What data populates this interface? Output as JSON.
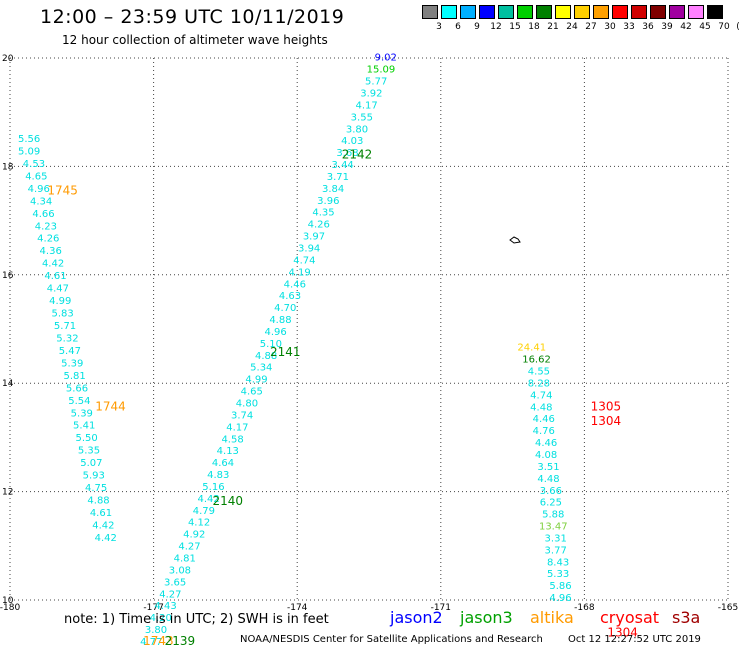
{
  "header": {
    "title": "12:00 – 23:59 UTC 10/11/2019",
    "subtitle": "12 hour collection of altimeter wave heights"
  },
  "colorbar": {
    "colors": [
      "#808080",
      "#00ffff",
      "#00b0ff",
      "#0000ff",
      "#00c0a0",
      "#00d000",
      "#008000",
      "#ffff00",
      "#ffd000",
      "#ffa000",
      "#ff0000",
      "#d00000",
      "#800000",
      "#a000a0",
      "#ff80ff",
      "#000000"
    ],
    "labels": [
      "3",
      "6",
      "9",
      "12",
      "15",
      "18",
      "21",
      "24",
      "27",
      "30",
      "33",
      "36",
      "39",
      "42",
      "45",
      "70",
      "(ft)"
    ]
  },
  "map": {
    "lon_range": [
      -180,
      -165
    ],
    "lat_range": [
      10,
      20
    ],
    "x_ticks": [
      "-180",
      "-177",
      "-174",
      "-171",
      "-168",
      "-165"
    ],
    "y_ticks": [
      "20",
      "18",
      "16",
      "14",
      "12",
      "10"
    ],
    "grid": "dotted",
    "tracks": [
      {
        "id": "track-1745-1744-1743",
        "color": "#00e0e0",
        "points": [
          {
            "lon": -179.6,
            "lat": 18.45,
            "v": "5.56"
          },
          {
            "lon": -179.6,
            "lat": 18.22,
            "v": "5.09"
          },
          {
            "lon": -179.5,
            "lat": 17.99,
            "v": "4.53"
          },
          {
            "lon": -179.45,
            "lat": 17.76,
            "v": "4.65"
          },
          {
            "lon": -179.4,
            "lat": 17.53,
            "v": "4.96"
          },
          {
            "lon": -179.35,
            "lat": 17.3,
            "v": "4.34"
          },
          {
            "lon": -179.3,
            "lat": 17.07,
            "v": "4.66"
          },
          {
            "lon": -179.25,
            "lat": 16.84,
            "v": "4.23"
          },
          {
            "lon": -179.2,
            "lat": 16.61,
            "v": "4.26"
          },
          {
            "lon": -179.15,
            "lat": 16.38,
            "v": "4.36"
          },
          {
            "lon": -179.1,
            "lat": 16.15,
            "v": "4.42"
          },
          {
            "lon": -179.05,
            "lat": 15.92,
            "v": "4.61"
          },
          {
            "lon": -179.0,
            "lat": 15.69,
            "v": "4.47"
          },
          {
            "lon": -178.95,
            "lat": 15.46,
            "v": "4.99"
          },
          {
            "lon": -178.9,
            "lat": 15.23,
            "v": "5.83"
          },
          {
            "lon": -178.85,
            "lat": 15.0,
            "v": "5.71"
          },
          {
            "lon": -178.8,
            "lat": 14.77,
            "v": "5.32"
          },
          {
            "lon": -178.75,
            "lat": 14.54,
            "v": "5.47"
          },
          {
            "lon": -178.7,
            "lat": 14.31,
            "v": "5.39"
          },
          {
            "lon": -178.65,
            "lat": 14.08,
            "v": "5.81"
          },
          {
            "lon": -178.6,
            "lat": 13.85,
            "v": "5.66"
          },
          {
            "lon": -178.55,
            "lat": 13.62,
            "v": "5.54"
          },
          {
            "lon": -178.5,
            "lat": 13.39,
            "v": "5.39"
          },
          {
            "lon": -178.45,
            "lat": 13.16,
            "v": "5.41"
          },
          {
            "lon": -178.4,
            "lat": 12.93,
            "v": "5.50"
          },
          {
            "lon": -178.35,
            "lat": 12.7,
            "v": "5.35"
          },
          {
            "lon": -178.3,
            "lat": 12.47,
            "v": "5.07"
          },
          {
            "lon": -178.25,
            "lat": 12.24,
            "v": "5.93"
          },
          {
            "lon": -178.2,
            "lat": 12.01,
            "v": "4.75"
          },
          {
            "lon": -178.15,
            "lat": 11.78,
            "v": "4.88"
          },
          {
            "lon": -178.1,
            "lat": 11.55,
            "v": "4.61"
          },
          {
            "lon": -178.05,
            "lat": 11.32,
            "v": "4.42"
          },
          {
            "lon": -178.0,
            "lat": 11.09,
            "v": "4.42"
          }
        ]
      },
      {
        "id": "track-2139-2140-2141-2142",
        "color": "#00e0e0",
        "points": [
          {
            "lon": -172.15,
            "lat": 19.95,
            "v": "9.02",
            "c": "#0000ff"
          },
          {
            "lon": -172.25,
            "lat": 19.73,
            "v": "15.09",
            "c": "#00d000"
          },
          {
            "lon": -172.35,
            "lat": 19.51,
            "v": "5.77"
          },
          {
            "lon": -172.45,
            "lat": 19.29,
            "v": "3.92"
          },
          {
            "lon": -172.55,
            "lat": 19.07,
            "v": "4.17"
          },
          {
            "lon": -172.65,
            "lat": 18.85,
            "v": "3.55"
          },
          {
            "lon": -172.75,
            "lat": 18.63,
            "v": "3.80"
          },
          {
            "lon": -172.85,
            "lat": 18.41,
            "v": "4.03"
          },
          {
            "lon": -172.95,
            "lat": 18.19,
            "v": "3.68"
          },
          {
            "lon": -173.05,
            "lat": 17.97,
            "v": "3.44"
          },
          {
            "lon": -173.15,
            "lat": 17.75,
            "v": "3.71"
          },
          {
            "lon": -173.25,
            "lat": 17.53,
            "v": "3.84"
          },
          {
            "lon": -173.35,
            "lat": 17.31,
            "v": "3.96"
          },
          {
            "lon": -173.45,
            "lat": 17.09,
            "v": "4.35"
          },
          {
            "lon": -173.55,
            "lat": 16.87,
            "v": "4.26"
          },
          {
            "lon": -173.65,
            "lat": 16.65,
            "v": "3.97"
          },
          {
            "lon": -173.75,
            "lat": 16.43,
            "v": "3.94"
          },
          {
            "lon": -173.85,
            "lat": 16.21,
            "v": "4.74"
          },
          {
            "lon": -173.95,
            "lat": 15.99,
            "v": "4.19"
          },
          {
            "lon": -174.05,
            "lat": 15.77,
            "v": "4.46"
          },
          {
            "lon": -174.15,
            "lat": 15.55,
            "v": "4.63"
          },
          {
            "lon": -174.25,
            "lat": 15.33,
            "v": "4.70"
          },
          {
            "lon": -174.35,
            "lat": 15.11,
            "v": "4.88"
          },
          {
            "lon": -174.45,
            "lat": 14.89,
            "v": "4.96"
          },
          {
            "lon": -174.55,
            "lat": 14.67,
            "v": "5.10"
          },
          {
            "lon": -174.65,
            "lat": 14.45,
            "v": "4.88"
          },
          {
            "lon": -174.75,
            "lat": 14.23,
            "v": "5.34"
          },
          {
            "lon": -174.85,
            "lat": 14.01,
            "v": "4.99"
          },
          {
            "lon": -174.95,
            "lat": 13.79,
            "v": "4.65"
          },
          {
            "lon": -175.05,
            "lat": 13.57,
            "v": "4.80"
          },
          {
            "lon": -175.15,
            "lat": 13.35,
            "v": "3.74"
          },
          {
            "lon": -175.25,
            "lat": 13.13,
            "v": "4.17"
          },
          {
            "lon": -175.35,
            "lat": 12.91,
            "v": "4.58"
          },
          {
            "lon": -175.45,
            "lat": 12.69,
            "v": "4.13"
          },
          {
            "lon": -175.55,
            "lat": 12.47,
            "v": "4.64"
          },
          {
            "lon": -175.65,
            "lat": 12.25,
            "v": "4.83"
          },
          {
            "lon": -175.75,
            "lat": 12.03,
            "v": "5.16"
          },
          {
            "lon": -175.85,
            "lat": 11.81,
            "v": "4.42"
          },
          {
            "lon": -175.95,
            "lat": 11.59,
            "v": "4.79"
          },
          {
            "lon": -176.05,
            "lat": 11.37,
            "v": "4.12"
          },
          {
            "lon": -176.15,
            "lat": 11.15,
            "v": "4.92"
          },
          {
            "lon": -176.25,
            "lat": 10.93,
            "v": "4.27"
          },
          {
            "lon": -176.35,
            "lat": 10.71,
            "v": "4.81"
          },
          {
            "lon": -176.45,
            "lat": 10.49,
            "v": "3.08"
          },
          {
            "lon": -176.55,
            "lat": 10.27,
            "v": "3.65"
          },
          {
            "lon": -176.65,
            "lat": 10.05,
            "v": "4.27"
          },
          {
            "lon": -176.75,
            "lat": 9.83,
            "v": "4.43"
          },
          {
            "lon": -176.85,
            "lat": 9.61,
            "v": "4.20"
          },
          {
            "lon": -176.95,
            "lat": 9.39,
            "v": "3.80"
          },
          {
            "lon": -177.05,
            "lat": 9.17,
            "v": "4.77"
          }
        ]
      },
      {
        "id": "track-1304-1305",
        "color": "#00e0e0",
        "points": [
          {
            "lon": -169.1,
            "lat": 14.6,
            "v": "24.41",
            "c": "#ffd000"
          },
          {
            "lon": -169.0,
            "lat": 14.38,
            "v": "16.62",
            "c": "#008000"
          },
          {
            "lon": -168.95,
            "lat": 14.16,
            "v": "4.55"
          },
          {
            "lon": -168.95,
            "lat": 13.94,
            "v": "8.28"
          },
          {
            "lon": -168.9,
            "lat": 13.72,
            "v": "4.74"
          },
          {
            "lon": -168.9,
            "lat": 13.5,
            "v": "4.48"
          },
          {
            "lon": -168.85,
            "lat": 13.28,
            "v": "4.46"
          },
          {
            "lon": -168.85,
            "lat": 13.06,
            "v": "4.76"
          },
          {
            "lon": -168.8,
            "lat": 12.84,
            "v": "4.46"
          },
          {
            "lon": -168.8,
            "lat": 12.62,
            "v": "4.08"
          },
          {
            "lon": -168.75,
            "lat": 12.4,
            "v": "3.51"
          },
          {
            "lon": -168.75,
            "lat": 12.18,
            "v": "4.48"
          },
          {
            "lon": -168.7,
            "lat": 11.96,
            "v": "3.66"
          },
          {
            "lon": -168.7,
            "lat": 11.74,
            "v": "6.25"
          },
          {
            "lon": -168.65,
            "lat": 11.52,
            "v": "5.88"
          },
          {
            "lon": -168.65,
            "lat": 11.3,
            "v": "13.47",
            "c": "#80d040"
          },
          {
            "lon": -168.6,
            "lat": 11.08,
            "v": "3.31"
          },
          {
            "lon": -168.6,
            "lat": 10.86,
            "v": "3.77"
          },
          {
            "lon": -168.55,
            "lat": 10.64,
            "v": "8.43"
          },
          {
            "lon": -168.55,
            "lat": 10.42,
            "v": "5.33"
          },
          {
            "lon": -168.5,
            "lat": 10.2,
            "v": "5.86"
          },
          {
            "lon": -168.5,
            "lat": 9.98,
            "v": "4.96"
          }
        ]
      }
    ],
    "pass_labels": [
      {
        "text": "1745",
        "lon": -178.9,
        "lat": 17.48,
        "color": "#ff9a00"
      },
      {
        "text": "1744",
        "lon": -177.9,
        "lat": 13.5,
        "color": "#ff9a00"
      },
      {
        "text": "1743",
        "lon": -176.9,
        "lat": 9.17,
        "color": "#ff9a00"
      },
      {
        "text": "2142",
        "lon": -172.75,
        "lat": 18.15,
        "color": "#008000"
      },
      {
        "text": "2141",
        "lon": -174.25,
        "lat": 14.5,
        "color": "#008000"
      },
      {
        "text": "2140",
        "lon": -175.45,
        "lat": 11.75,
        "color": "#008000"
      },
      {
        "text": "2139",
        "lon": -176.45,
        "lat": 9.17,
        "color": "#008000"
      },
      {
        "text": "1305",
        "lon": -167.55,
        "lat": 13.5,
        "color": "#ff0000"
      },
      {
        "text": "1304",
        "lon": -167.55,
        "lat": 13.23,
        "color": "#ff0000"
      },
      {
        "text": "1304",
        "lon": -167.2,
        "lat": 9.33,
        "color": "#ff0000"
      }
    ]
  },
  "footer": {
    "note": "note:  1) Time is in UTC;  2) SWH is in feet",
    "credit": "NOAA/NESDIS Center for Satellite Applications and Research",
    "timestamp": "Oct 12 12:27:52 UTC 2019",
    "satellites": [
      {
        "name": "jason2",
        "color": "#0000ff"
      },
      {
        "name": "jason3",
        "color": "#00a000"
      },
      {
        "name": "altika",
        "color": "#ff9a00"
      },
      {
        "name": "cryosat",
        "color": "#ff0000"
      },
      {
        "name": "s3a",
        "color": "#a00000"
      }
    ]
  }
}
